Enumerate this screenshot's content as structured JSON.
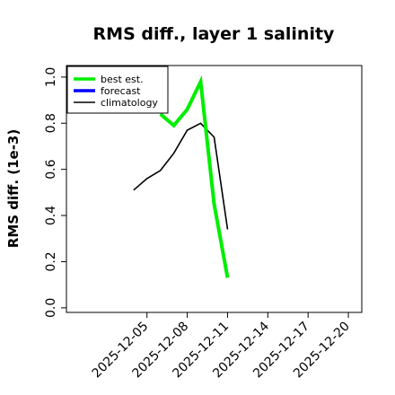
{
  "chart_data": {
    "type": "line",
    "title": "RMS diff., layer 1 salinity",
    "xlabel": "",
    "ylabel": "RMS diff. (1e-3)",
    "x_ticks": [
      "2025-12-05",
      "2025-12-08",
      "2025-12-11",
      "2025-12-14",
      "2025-12-17",
      "2025-12-20"
    ],
    "highlight_tick": "2025-12-11",
    "highlight_color": "#228b22",
    "xlim": [
      "2025-11-29",
      "2025-12-21"
    ],
    "ylim": [
      -0.02,
      1.05
    ],
    "y_ticks": [
      "0.0",
      "0.2",
      "0.4",
      "0.6",
      "0.8",
      "1.0"
    ],
    "legend_position": "top-left",
    "series": [
      {
        "name": "best est.",
        "color": "#00ee00",
        "points": [
          {
            "x": "2025-12-06",
            "y": 0.84
          },
          {
            "x": "2025-12-07",
            "y": 0.79
          },
          {
            "x": "2025-12-08",
            "y": 0.86
          },
          {
            "x": "2025-12-09",
            "y": 0.98
          },
          {
            "x": "2025-12-10",
            "y": 0.45
          },
          {
            "x": "2025-12-11",
            "y": 0.13
          }
        ]
      },
      {
        "name": "forecast",
        "color": "#0000ff",
        "points": []
      },
      {
        "name": "climatology",
        "color": "#000000",
        "points": [
          {
            "x": "2025-12-04",
            "y": 0.51
          },
          {
            "x": "2025-12-05",
            "y": 0.56
          },
          {
            "x": "2025-12-06",
            "y": 0.595
          },
          {
            "x": "2025-12-07",
            "y": 0.67
          },
          {
            "x": "2025-12-08",
            "y": 0.77
          },
          {
            "x": "2025-12-09",
            "y": 0.8
          },
          {
            "x": "2025-12-10",
            "y": 0.74
          },
          {
            "x": "2025-12-11",
            "y": 0.34
          }
        ]
      }
    ]
  }
}
